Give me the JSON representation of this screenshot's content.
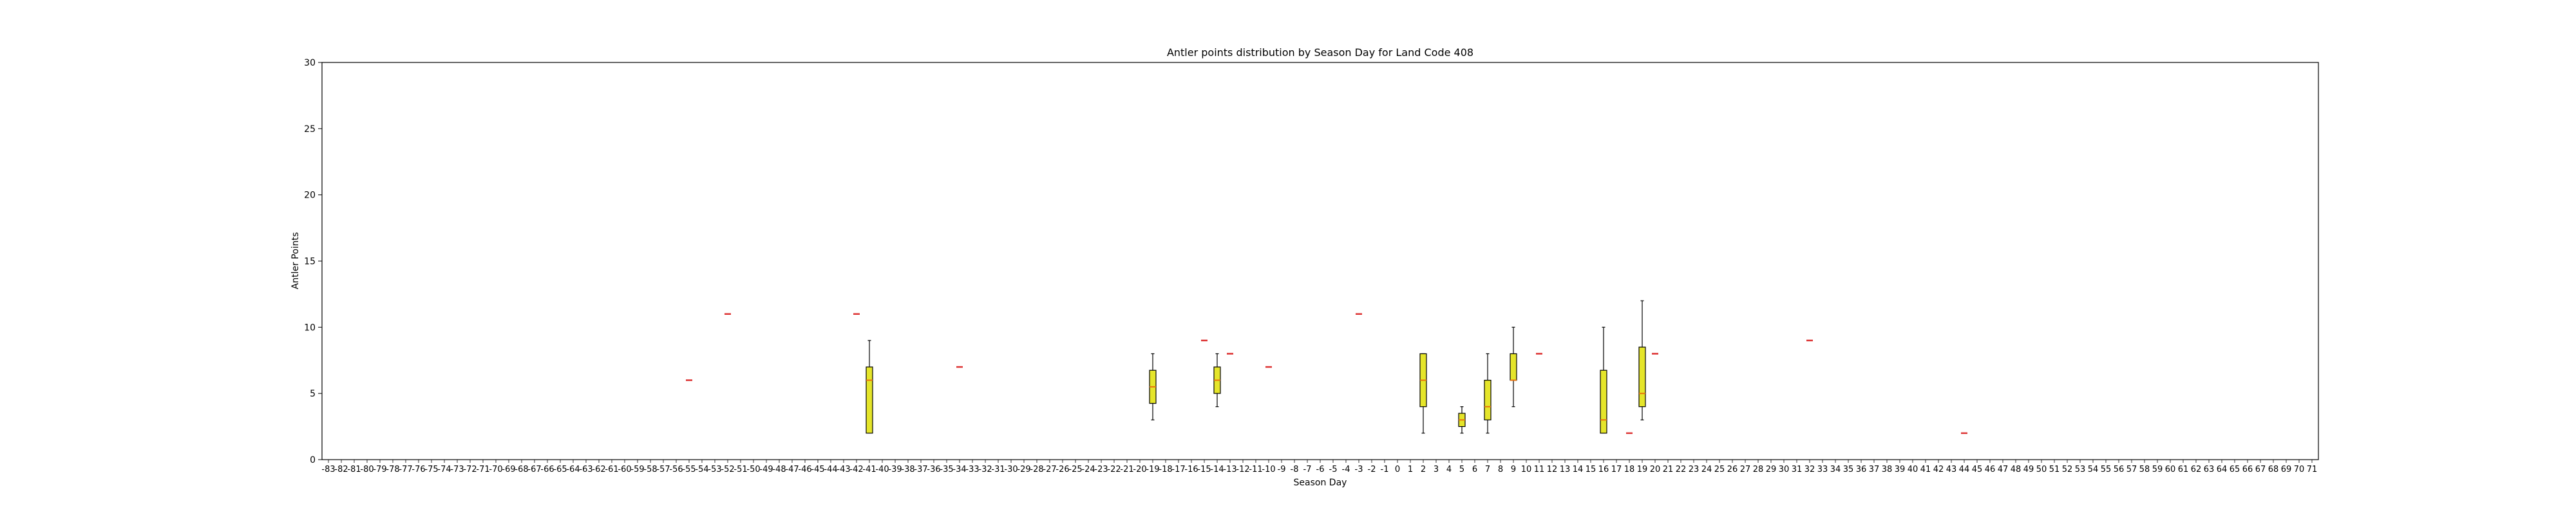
{
  "chart_data": {
    "type": "box",
    "title": "Antler points distribution by Season Day for Land Code 408",
    "xlabel": "Season Day",
    "ylabel": "Antler Points",
    "ylim": [
      0,
      30
    ],
    "yticks": [
      0,
      5,
      10,
      15,
      20,
      25,
      30
    ],
    "x_range": [
      -83,
      71
    ],
    "grid": false,
    "colors": {
      "box_fill": "#e5e52a",
      "median": "#e8730c",
      "edge": "#000000",
      "single": "#dd3333"
    },
    "boxes": [
      {
        "day": -41,
        "min": 2,
        "q1": 2,
        "median": 6,
        "q3": 7,
        "max": 9
      },
      {
        "day": -19,
        "min": 3,
        "q1": 4.25,
        "median": 5.5,
        "q3": 6.75,
        "max": 8
      },
      {
        "day": -14,
        "min": 4,
        "q1": 5,
        "median": 6,
        "q3": 7,
        "max": 8
      },
      {
        "day": 2,
        "min": 2,
        "q1": 4,
        "median": 6,
        "q3": 8,
        "max": 8
      },
      {
        "day": 5,
        "min": 2,
        "q1": 2.5,
        "median": 3,
        "q3": 3.5,
        "max": 4
      },
      {
        "day": 7,
        "min": 2,
        "q1": 3,
        "median": 4,
        "q3": 6,
        "max": 8
      },
      {
        "day": 9,
        "min": 4,
        "q1": 6,
        "median": 6,
        "q3": 8,
        "max": 10
      },
      {
        "day": 16,
        "min": 2,
        "q1": 2,
        "median": 3,
        "q3": 6.75,
        "max": 10
      },
      {
        "day": 19,
        "min": 3,
        "q1": 4,
        "median": 5,
        "q3": 8.5,
        "max": 12
      }
    ],
    "single_points": [
      {
        "day": -55,
        "value": 6
      },
      {
        "day": -52,
        "value": 11
      },
      {
        "day": -42,
        "value": 11
      },
      {
        "day": -34,
        "value": 7
      },
      {
        "day": -15,
        "value": 9
      },
      {
        "day": -13,
        "value": 8
      },
      {
        "day": -10,
        "value": 7
      },
      {
        "day": -3,
        "value": 11
      },
      {
        "day": 11,
        "value": 8
      },
      {
        "day": 18,
        "value": 2
      },
      {
        "day": 20,
        "value": 8
      },
      {
        "day": 32,
        "value": 9
      },
      {
        "day": 44,
        "value": 2
      }
    ]
  }
}
